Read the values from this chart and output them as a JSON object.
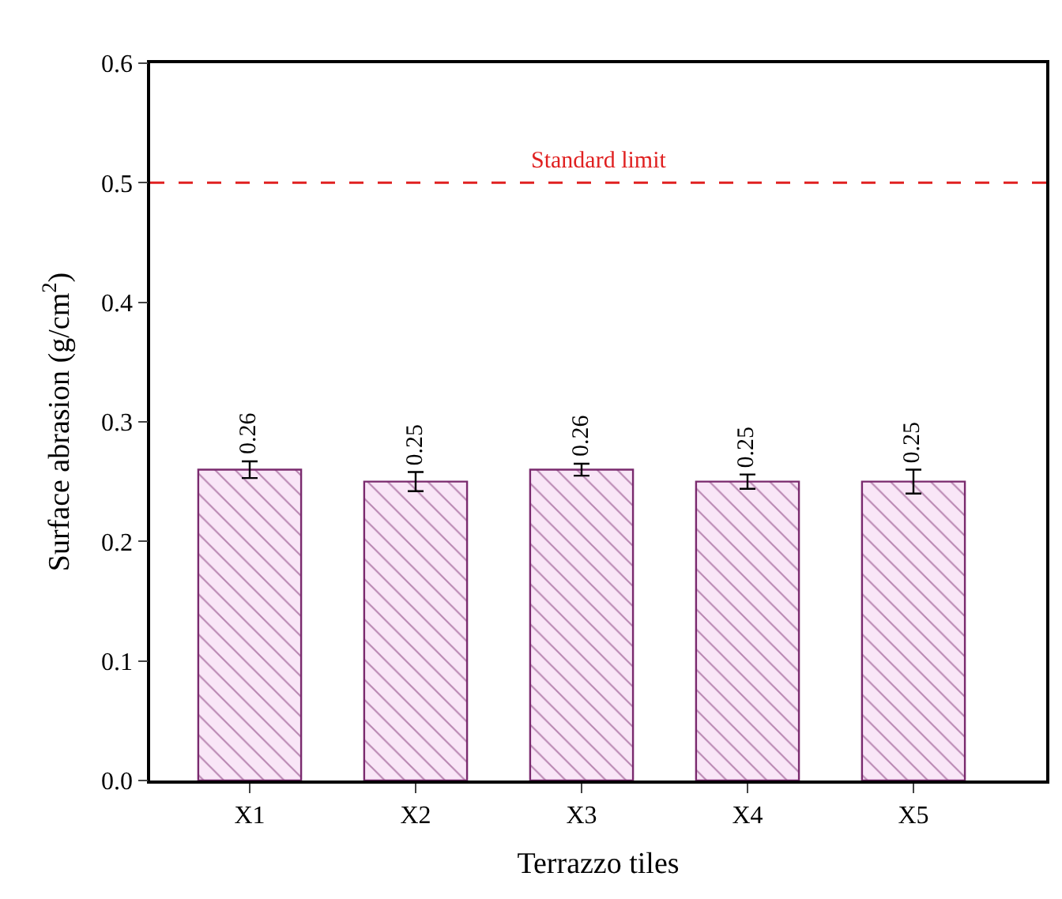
{
  "chart_data": {
    "type": "bar",
    "xlabel": "Terrazzo tiles",
    "ylabel": "Surface abrasion (g/cm$^{2}$)",
    "categories": [
      "X1",
      "X2",
      "X3",
      "X4",
      "X5"
    ],
    "values": [
      0.26,
      0.25,
      0.26,
      0.25,
      0.25
    ],
    "errors": [
      0.007,
      0.008,
      0.005,
      0.006,
      0.01
    ],
    "color": "#7a2a6e",
    "data_labels": true,
    "ylim": [
      0,
      0.6
    ],
    "yticks": [
      {
        "value": 0,
        "label": "0.0"
      },
      0.1,
      0.2,
      0.3,
      0.4,
      0.5,
      0.6
    ],
    "ref_lines": [
      {
        "axis": "y",
        "value": 0.5,
        "label": "Standard limit",
        "color": "#e02020",
        "line_style": "dashed"
      }
    ]
  }
}
